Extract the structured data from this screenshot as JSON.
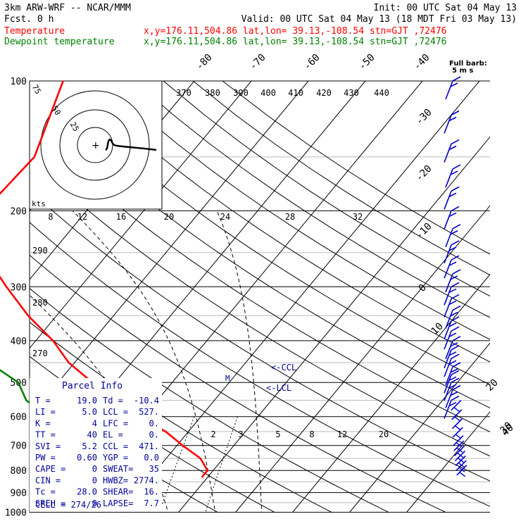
{
  "header": {
    "model": "3km ARW-WRF -- NCAR/MMM",
    "init": "Init: 00 UTC Sat 04 May 13",
    "fcst": "Fcst.     0 h",
    "valid": "Valid: 00 UTC Sat 04 May 13 (18 MDT Fri 03 May 13)",
    "temp_label": "Temperature",
    "temp_loc": "x,y=176.11,504.86   lat,lon= 39.13,-108.54  stn=GJT ,72476",
    "dew_label": "Dewpoint temperature",
    "dew_loc": "x,y=176.11,504.86   lat,lon= 39.13,-108.54  stn=GJT ,72476"
  },
  "colors": {
    "temperature": "#ff0000",
    "dewpoint": "#008000",
    "wind": "#0000cc",
    "grid": "#000000",
    "label_blue": "#000099"
  },
  "chart_data": {
    "type": "line",
    "pressure_labels": [
      "100",
      "200",
      "300",
      "400",
      "500",
      "600",
      "700",
      "800",
      "900",
      "1000"
    ],
    "isotherm_labels": [
      "-80",
      "-70",
      "-60",
      "-50",
      "-40",
      "-30",
      "-20",
      "-10",
      "0",
      "10",
      "20",
      "30",
      "40"
    ],
    "theta_labels": [
      "370",
      "380",
      "390",
      "400",
      "410",
      "420",
      "430",
      "440"
    ],
    "theta_left_labels": [
      "290",
      "280",
      "270"
    ],
    "hodo_speed_labels": [
      "8",
      "12",
      "16",
      "20",
      "24",
      "28",
      "32"
    ],
    "hodo_ring_labels": [
      "75",
      "50",
      "25"
    ],
    "hodo_units": "kts",
    "mixing_ratio_labels": [
      "2",
      "3",
      "5",
      "8",
      "12",
      "20"
    ],
    "ccl_label": "<-CCL",
    "lcl_label": "<-LCL",
    "hodo_marker": "M",
    "full_barb_text": "Full barb:",
    "full_barb_units": "5 m s",
    "series": [
      {
        "name": "Temperature",
        "pressure": [
          100,
          150,
          200,
          250,
          300,
          350,
          400,
          450,
          500,
          550,
          600,
          650,
          700,
          750,
          800,
          830
        ],
        "values": [
          -63,
          -57,
          -58,
          -52,
          -43,
          -35,
          -27,
          -21,
          -14,
          -8,
          -1,
          6,
          11,
          16,
          19,
          19
        ]
      },
      {
        "name": "Dewpoint temperature",
        "pressure": [
          100,
          150,
          180,
          200,
          250,
          300,
          350,
          400,
          450,
          500,
          550,
          600,
          650,
          700,
          750,
          800,
          830
        ],
        "values": [
          -78,
          -69,
          -63,
          -73,
          -75,
          -65,
          -56,
          -46,
          -35,
          -27,
          -23,
          -17,
          -14,
          -12,
          -11,
          -11,
          -10
        ]
      }
    ],
    "wind_levels": [
      "100",
      "120",
      "140",
      "160",
      "180",
      "200",
      "220",
      "240",
      "260",
      "280",
      "300",
      "320",
      "340",
      "360",
      "380",
      "400",
      "420",
      "440",
      "460",
      "480",
      "500",
      "520",
      "550",
      "580",
      "610",
      "640",
      "670",
      "700",
      "720",
      "740",
      "760",
      "780",
      "800",
      "820"
    ]
  },
  "parcel_info": {
    "title": "Parcel Info",
    "rows": [
      [
        "T  =",
        "19.0",
        "Td =",
        "-10.4"
      ],
      [
        "LI =",
        "5.0",
        "LCL =",
        "527."
      ],
      [
        "K  =",
        "4",
        "LFC =",
        "0."
      ],
      [
        "TT =",
        "40",
        "EL  =",
        "0."
      ],
      [
        "SVI =",
        "5.2",
        "CCL =",
        "471."
      ],
      [
        "PW =",
        "0.60",
        "YGP =",
        "0.0"
      ],
      [
        "CAPE =",
        "0",
        "SWEAT=",
        "35"
      ],
      [
        "CIN =",
        "0",
        "HWBZ=",
        "2774."
      ],
      [
        "Tc =",
        "28.0",
        "SHEAR=",
        "16."
      ],
      [
        "SREH =",
        "0",
        "LAPSE=",
        "7.7"
      ]
    ],
    "cell": "CELL = 274/26"
  }
}
